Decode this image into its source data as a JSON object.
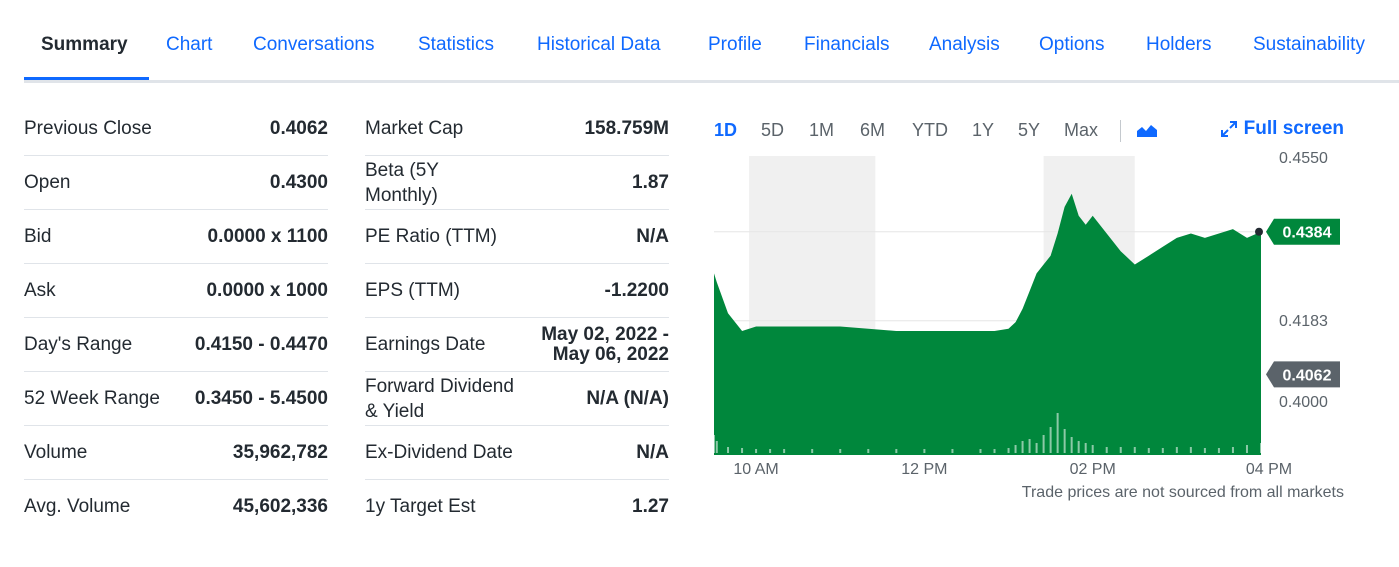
{
  "tabs": [
    {
      "label": "Summary",
      "active": true
    },
    {
      "label": "Chart",
      "active": false
    },
    {
      "label": "Conversations",
      "active": false
    },
    {
      "label": "Statistics",
      "active": false
    },
    {
      "label": "Historical Data",
      "active": false
    },
    {
      "label": "Profile",
      "active": false
    },
    {
      "label": "Financials",
      "active": false
    },
    {
      "label": "Analysis",
      "active": false
    },
    {
      "label": "Options",
      "active": false
    },
    {
      "label": "Holders",
      "active": false
    },
    {
      "label": "Sustainability",
      "active": false
    }
  ],
  "summary_left": [
    {
      "label": "Previous Close",
      "value": "0.4062"
    },
    {
      "label": "Open",
      "value": "0.4300"
    },
    {
      "label": "Bid",
      "value": "0.0000 x 1100"
    },
    {
      "label": "Ask",
      "value": "0.0000 x 1000"
    },
    {
      "label": "Day's Range",
      "value": "0.4150 - 0.4470"
    },
    {
      "label": "52 Week Range",
      "value": "0.3450 - 5.4500"
    },
    {
      "label": "Volume",
      "value": "35,962,782"
    },
    {
      "label": "Avg. Volume",
      "value": "45,602,336"
    }
  ],
  "summary_right": [
    {
      "label": "Market Cap",
      "value": "158.759M"
    },
    {
      "label": "Beta (5Y Monthly)",
      "value": "1.87"
    },
    {
      "label": "PE Ratio (TTM)",
      "value": "N/A"
    },
    {
      "label": "EPS (TTM)",
      "value": "-1.2200"
    },
    {
      "label": "Earnings Date",
      "value": "May 02, 2022 - May 06, 2022"
    },
    {
      "label": "Forward Dividend & Yield",
      "value": "N/A (N/A)"
    },
    {
      "label": "Ex-Dividend Date",
      "value": "N/A"
    },
    {
      "label": "1y Target Est",
      "value": "1.27"
    }
  ],
  "chart": {
    "ranges": [
      {
        "label": "1D",
        "active": true
      },
      {
        "label": "5D",
        "active": false
      },
      {
        "label": "1M",
        "active": false
      },
      {
        "label": "6M",
        "active": false
      },
      {
        "label": "YTD",
        "active": false
      },
      {
        "label": "1Y",
        "active": false
      },
      {
        "label": "5Y",
        "active": false
      },
      {
        "label": "Max",
        "active": false
      }
    ],
    "chart_type_icon": "mountain-chart-icon",
    "fullscreen_label": "Full screen",
    "footnote": "Trade prices are not sourced from all markets"
  },
  "chart_data": {
    "type": "area",
    "x_ticks": [
      "10 AM",
      "12 PM",
      "02 PM",
      "04 PM"
    ],
    "y_ticks": [
      "0.4550",
      "0.4183",
      "0.4000"
    ],
    "ylim": [
      0.388,
      0.4555
    ],
    "current_price": "0.4384",
    "previous_close": "0.4062",
    "colors": {
      "area": "#00873c",
      "marker_current": "#00873c",
      "marker_prev": "#5b636a",
      "shade": "#f0f0f0"
    },
    "shaded_periods": [
      [
        "09:55",
        "11:25"
      ],
      [
        "13:25",
        "14:30"
      ]
    ],
    "x": [
      "09:30",
      "09:32",
      "09:40",
      "09:50",
      "10:00",
      "10:10",
      "10:20",
      "10:40",
      "11:00",
      "11:20",
      "11:40",
      "12:00",
      "12:20",
      "12:40",
      "12:50",
      "13:00",
      "13:05",
      "13:10",
      "13:15",
      "13:20",
      "13:25",
      "13:30",
      "13:35",
      "13:40",
      "13:45",
      "13:50",
      "13:55",
      "14:00",
      "14:10",
      "14:20",
      "14:30",
      "14:40",
      "14:50",
      "15:00",
      "15:10",
      "15:20",
      "15:30",
      "15:40",
      "15:50",
      "16:00"
    ],
    "values": [
      0.429,
      0.427,
      0.42,
      0.416,
      0.417,
      0.417,
      0.417,
      0.417,
      0.417,
      0.4165,
      0.416,
      0.416,
      0.416,
      0.416,
      0.416,
      0.4165,
      0.418,
      0.421,
      0.425,
      0.429,
      0.431,
      0.433,
      0.438,
      0.444,
      0.447,
      0.442,
      0.44,
      0.442,
      0.438,
      0.434,
      0.431,
      0.433,
      0.435,
      0.437,
      0.438,
      0.437,
      0.438,
      0.439,
      0.437,
      0.4384
    ],
    "volume": [
      18,
      12,
      6,
      5,
      4,
      4,
      4,
      4,
      4,
      4,
      4,
      4,
      4,
      4,
      4,
      5,
      8,
      12,
      14,
      10,
      18,
      26,
      40,
      24,
      16,
      12,
      10,
      8,
      6,
      6,
      6,
      5,
      5,
      6,
      6,
      5,
      5,
      6,
      8,
      10
    ]
  }
}
